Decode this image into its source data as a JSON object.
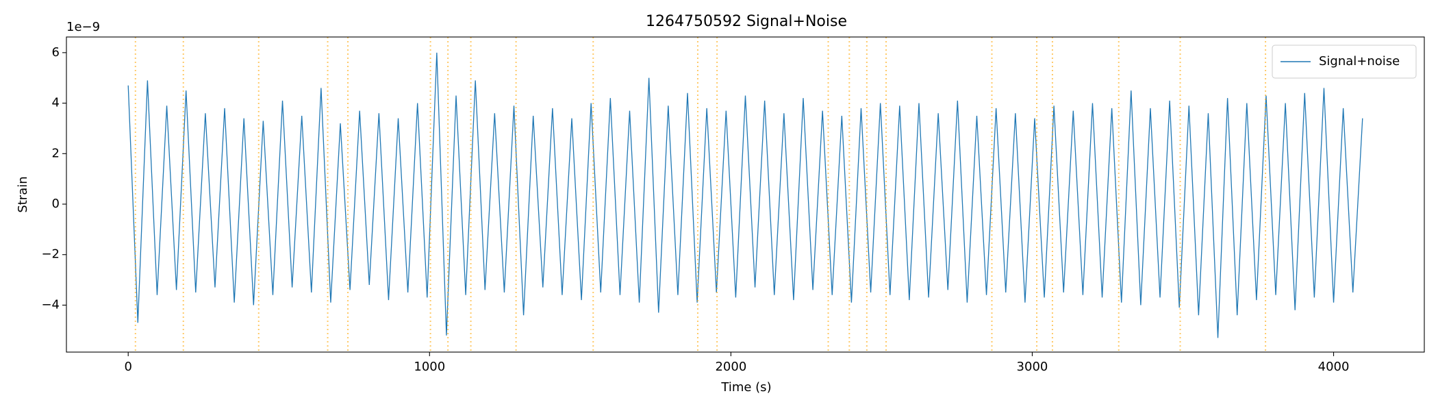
{
  "chart_data": {
    "type": "line",
    "title": "1264750592 Signal+Noise",
    "xlabel": "Time (s)",
    "ylabel": "Strain",
    "y_offset_label": "1e−9",
    "xlim": [
      -205,
      4301
    ],
    "ylim": [
      -5.86,
      6.62
    ],
    "xticks": [
      0,
      1000,
      2000,
      3000,
      4000
    ],
    "yticks": [
      {
        "value": -4,
        "label": "−4"
      },
      {
        "value": -2,
        "label": "−2"
      },
      0,
      2,
      4,
      6
    ],
    "grid": false,
    "legend": "upper right",
    "x": [
      0,
      32,
      64,
      96,
      128,
      160,
      192,
      224,
      256,
      288,
      320,
      352,
      384,
      416,
      448,
      480,
      512,
      544,
      576,
      608,
      640,
      672,
      704,
      736,
      768,
      800,
      832,
      864,
      896,
      928,
      960,
      992,
      1024,
      1056,
      1088,
      1120,
      1152,
      1184,
      1216,
      1248,
      1280,
      1312,
      1344,
      1376,
      1408,
      1440,
      1472,
      1504,
      1536,
      1568,
      1600,
      1632,
      1664,
      1696,
      1728,
      1760,
      1792,
      1824,
      1856,
      1888,
      1920,
      1952,
      1984,
      2016,
      2048,
      2080,
      2112,
      2144,
      2176,
      2208,
      2240,
      2272,
      2304,
      2336,
      2368,
      2400,
      2432,
      2464,
      2496,
      2528,
      2560,
      2592,
      2624,
      2656,
      2688,
      2720,
      2752,
      2784,
      2816,
      2848,
      2880,
      2912,
      2944,
      2976,
      3008,
      3040,
      3072,
      3104,
      3136,
      3168,
      3200,
      3232,
      3264,
      3296,
      3328,
      3360,
      3392,
      3424,
      3456,
      3488,
      3520,
      3552,
      3584,
      3616,
      3648,
      3680,
      3712,
      3744,
      3776,
      3808,
      3840,
      3872,
      3904,
      3936,
      3968,
      4000,
      4032,
      4064,
      4096
    ],
    "series": [
      {
        "name": "Signal+noise",
        "color": "#1f77b4",
        "values": [
          4.7,
          -4.7,
          4.9,
          -3.6,
          3.9,
          -3.4,
          4.5,
          -3.5,
          3.6,
          -3.3,
          3.8,
          -3.9,
          3.4,
          -4.0,
          3.3,
          -3.6,
          4.1,
          -3.3,
          3.5,
          -3.5,
          4.6,
          -3.9,
          3.2,
          -3.4,
          3.7,
          -3.2,
          3.6,
          -3.8,
          3.4,
          -3.5,
          4.0,
          -3.7,
          6.0,
          -5.2,
          4.3,
          -3.6,
          4.9,
          -3.4,
          3.6,
          -3.5,
          3.9,
          -4.4,
          3.5,
          -3.3,
          3.8,
          -3.6,
          3.4,
          -3.8,
          4.0,
          -3.5,
          4.2,
          -3.6,
          3.7,
          -3.9,
          5.0,
          -4.3,
          3.9,
          -3.6,
          4.4,
          -3.9,
          3.8,
          -3.5,
          3.7,
          -3.7,
          4.3,
          -3.3,
          4.1,
          -3.6,
          3.6,
          -3.8,
          4.2,
          -3.4,
          3.7,
          -3.6,
          3.5,
          -3.9,
          3.8,
          -3.5,
          4.0,
          -3.6,
          3.9,
          -3.8,
          4.0,
          -3.7,
          3.6,
          -3.4,
          4.1,
          -3.9,
          3.5,
          -3.6,
          3.8,
          -3.5,
          3.6,
          -3.9,
          3.4,
          -3.7,
          3.9,
          -3.5,
          3.7,
          -3.6,
          4.0,
          -3.7,
          3.8,
          -3.9,
          4.5,
          -4.0,
          3.8,
          -3.7,
          4.1,
          -4.1,
          3.9,
          -4.4,
          3.6,
          -5.3,
          4.2,
          -4.4,
          4.0,
          -3.8,
          4.3,
          -3.6,
          4.0,
          -4.2,
          4.4,
          -3.7,
          4.6,
          -3.9,
          3.8,
          -3.5,
          3.4
        ]
      }
    ],
    "vlines": {
      "color": "#ffa500",
      "x": [
        24,
        183,
        433,
        662,
        729,
        1003,
        1061,
        1137,
        1287,
        1543,
        1890,
        1954,
        2323,
        2393,
        2451,
        2515,
        2866,
        3015,
        3067,
        3287,
        3491,
        3774
      ]
    }
  }
}
